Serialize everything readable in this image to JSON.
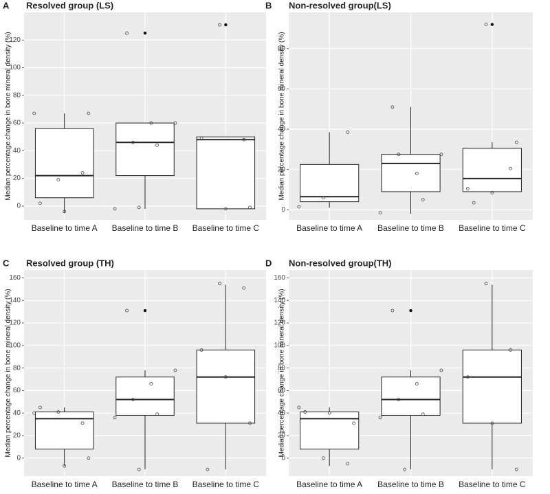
{
  "chart_data": [
    {
      "type": "box",
      "panel": "A",
      "title": "Resolved group (LS)",
      "y_label": "Median percentage change in bone mineral density (%)",
      "categories": [
        "Baseline to time A",
        "Baseline to time B",
        "Baseline to time C"
      ],
      "boxes": [
        {
          "whislo": -5,
          "q1": 6,
          "med": 22,
          "q3": 56,
          "whishi": 67,
          "outliers": [],
          "points": [
            67,
            19,
            24,
            2,
            -4,
            67
          ]
        },
        {
          "whislo": -2,
          "q1": 22,
          "med": 46,
          "q3": 60,
          "whishi": 60,
          "outliers": [
            125
          ],
          "points": [
            125,
            60,
            60,
            46,
            44,
            -2,
            -1
          ]
        },
        {
          "whislo": -2,
          "q1": -2,
          "med": 48,
          "q3": 50,
          "whishi": 50,
          "outliers": [
            131
          ],
          "points": [
            131,
            48,
            49,
            -2,
            -1
          ]
        }
      ],
      "ylim": [
        -10,
        140
      ],
      "yticks": [
        0,
        20,
        40,
        60,
        80,
        100,
        120
      ],
      "grid": true
    },
    {
      "type": "box",
      "panel": "B",
      "title": "Non-resolved group(LS)",
      "y_label": "Median percentage change in bone mineral density (%)",
      "categories": [
        "Baseline to time A",
        "Baseline to time B",
        "Baseline to time C"
      ],
      "boxes": [
        {
          "whislo": 1,
          "q1": 4,
          "med": 6.5,
          "q3": 22.5,
          "whishi": 38.5,
          "outliers": [],
          "points": [
            1.5,
            6,
            38.5
          ]
        },
        {
          "whislo": -2,
          "q1": 9,
          "med": 23,
          "q3": 27.5,
          "whishi": 51,
          "outliers": [],
          "points": [
            51,
            18,
            27.5,
            27.5,
            5,
            -1.5
          ]
        },
        {
          "whislo": 8.5,
          "q1": 9,
          "med": 15.5,
          "q3": 30.5,
          "whishi": 33.5,
          "outliers": [
            92
          ],
          "points": [
            92,
            20.5,
            10.5,
            8.5,
            33.5,
            3.5
          ]
        }
      ],
      "ylim": [
        -5,
        98
      ],
      "yticks": [
        0,
        20,
        40,
        60,
        80
      ],
      "grid": true
    },
    {
      "type": "box",
      "panel": "C",
      "title": "Resolved group (TH)",
      "y_label": "Median percentage change in bone mineral density (%)",
      "categories": [
        "Baseline to time A",
        "Baseline to time B",
        "Baseline to time C"
      ],
      "boxes": [
        {
          "whislo": -7,
          "q1": 8,
          "med": 35,
          "q3": 41,
          "whishi": 45,
          "outliers": [],
          "points": [
            40,
            41,
            31,
            45,
            -7,
            0
          ]
        },
        {
          "whislo": -10,
          "q1": 38,
          "med": 52,
          "q3": 72,
          "whishi": 78,
          "outliers": [
            131
          ],
          "points": [
            131,
            66,
            78,
            52,
            39,
            36,
            -10
          ]
        },
        {
          "whislo": -10,
          "q1": 31,
          "med": 72,
          "q3": 96,
          "whishi": 154,
          "outliers": [],
          "points": [
            155,
            151,
            96,
            72,
            31,
            -10
          ]
        }
      ],
      "ylim": [
        -16,
        167
      ],
      "yticks": [
        0,
        20,
        40,
        60,
        80,
        100,
        120,
        140,
        160
      ],
      "grid": true
    },
    {
      "type": "box",
      "panel": "D",
      "title": "Non-resolved group(TH)",
      "y_label": "Median percentage change in bone mineral density (%)",
      "categories": [
        "Baseline to time A",
        "Baseline to time B",
        "Baseline to time C"
      ],
      "boxes": [
        {
          "whislo": -7,
          "q1": 8,
          "med": 35,
          "q3": 41,
          "whishi": 45,
          "outliers": [],
          "points": [
            45,
            0,
            -5,
            41,
            40,
            31
          ]
        },
        {
          "whislo": -10,
          "q1": 38,
          "med": 52,
          "q3": 72,
          "whishi": 78,
          "outliers": [
            131
          ],
          "points": [
            131,
            66,
            78,
            52,
            39,
            36,
            -10
          ]
        },
        {
          "whislo": -10,
          "q1": 31,
          "med": 72,
          "q3": 96,
          "whishi": 154,
          "outliers": [],
          "points": [
            155,
            96,
            72,
            31,
            -10
          ]
        }
      ],
      "ylim": [
        -16,
        167
      ],
      "yticks": [
        0,
        20,
        40,
        60,
        80,
        100,
        120,
        140,
        160
      ],
      "grid": true
    }
  ]
}
